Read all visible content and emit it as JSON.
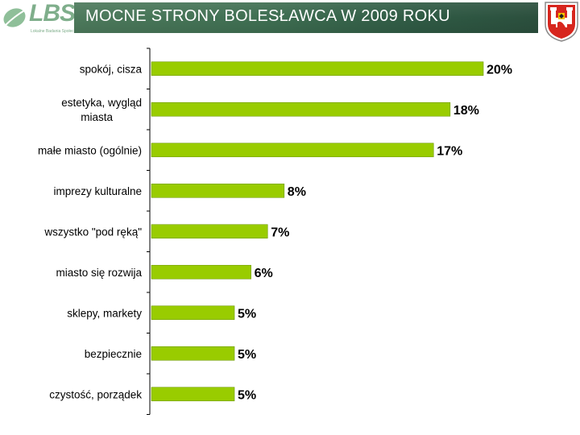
{
  "header": {
    "title": "MOCNE STRONY BOLESŁAWCA  W 2009 ROKU",
    "logo_text": "LBS",
    "logo_subtitle": "Lokalne Badania Społeczne"
  },
  "colors": {
    "bar": "#99cc00",
    "bar_edge": "#6f9a00",
    "banner": "#3f6f52",
    "axis": "#000000"
  },
  "chart_data": {
    "type": "bar",
    "orientation": "horizontal",
    "title": "",
    "xlabel": "",
    "ylabel": "",
    "xlim": [
      0,
      20
    ],
    "grid": false,
    "legend": "none",
    "categories": [
      [
        "spokój, cisza"
      ],
      [
        "estetyka, wygląd",
        "miasta"
      ],
      [
        "małe miasto (ogólnie)"
      ],
      [
        "imprezy kulturalne"
      ],
      [
        "wszystko \"pod ręką\""
      ],
      [
        "miasto się rozwija"
      ],
      [
        "sklepy, markety"
      ],
      [
        "bezpiecznie"
      ],
      [
        "czystość, porządek"
      ]
    ],
    "values": [
      20,
      18,
      17,
      8,
      7,
      6,
      5,
      5,
      5
    ],
    "value_labels": [
      "20%",
      "18%",
      "17%",
      "8%",
      "7%",
      "6%",
      "5%",
      "5%",
      "5%"
    ]
  }
}
